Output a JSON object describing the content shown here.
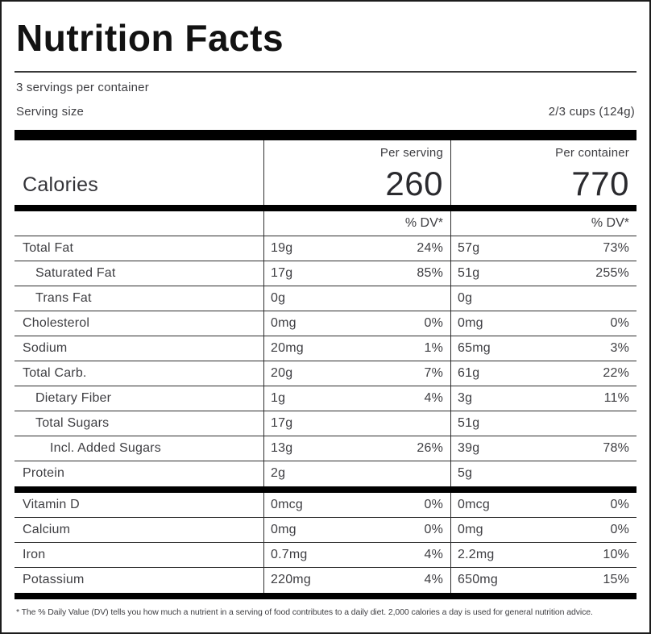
{
  "header": {
    "title": "Nutrition Facts",
    "servings_per_container": "3 servings per container",
    "serving_size_label": "Serving size",
    "serving_size_value": "2/3 cups (124g)"
  },
  "calories": {
    "label": "Calories",
    "per_serving_label": "Per serving",
    "per_serving_value": "260",
    "per_container_label": "Per container",
    "per_container_value": "770"
  },
  "dv_header": {
    "per_serving": "% DV*",
    "per_container": "% DV*"
  },
  "nutrients": [
    {
      "label": "Total Fat",
      "serving_amount": "19g",
      "serving_dv": "24%",
      "container_amount": "57g",
      "container_dv": "73%"
    },
    {
      "label": "Saturated Fat",
      "serving_amount": "17g",
      "serving_dv": "85%",
      "container_amount": "51g",
      "container_dv": "255%"
    },
    {
      "label": "Trans Fat",
      "serving_amount": "0g",
      "serving_dv": "",
      "container_amount": "0g",
      "container_dv": ""
    },
    {
      "label": "Cholesterol",
      "serving_amount": "0mg",
      "serving_dv": "0%",
      "container_amount": "0mg",
      "container_dv": "0%"
    },
    {
      "label": "Sodium",
      "serving_amount": "20mg",
      "serving_dv": "1%",
      "container_amount": "65mg",
      "container_dv": "3%"
    },
    {
      "label": "Total Carb.",
      "serving_amount": "20g",
      "serving_dv": "7%",
      "container_amount": "61g",
      "container_dv": "22%"
    },
    {
      "label": "Dietary Fiber",
      "serving_amount": "1g",
      "serving_dv": "4%",
      "container_amount": "3g",
      "container_dv": "11%"
    },
    {
      "label": "Total Sugars",
      "serving_amount": "17g",
      "serving_dv": "",
      "container_amount": "51g",
      "container_dv": ""
    },
    {
      "label": "Incl. Added Sugars",
      "serving_amount": "13g",
      "serving_dv": "26%",
      "container_amount": "39g",
      "container_dv": "78%"
    },
    {
      "label": "Protein",
      "serving_amount": "2g",
      "serving_dv": "",
      "container_amount": "5g",
      "container_dv": ""
    }
  ],
  "vitamins": [
    {
      "label": "Vitamin D",
      "serving_amount": "0mcg",
      "serving_dv": "0%",
      "container_amount": "0mcg",
      "container_dv": "0%"
    },
    {
      "label": "Calcium",
      "serving_amount": "0mg",
      "serving_dv": "0%",
      "container_amount": "0mg",
      "container_dv": "0%"
    },
    {
      "label": "Iron",
      "serving_amount": "0.7mg",
      "serving_dv": "4%",
      "container_amount": "2.2mg",
      "container_dv": "10%"
    },
    {
      "label": "Potassium",
      "serving_amount": "220mg",
      "serving_dv": "4%",
      "container_amount": "650mg",
      "container_dv": "15%"
    }
  ],
  "footnote": "* The % Daily Value (DV) tells you how much a nutrient in a serving of food contributes to a daily diet. 2,000 calories a day is used for general nutrition advice.",
  "colors": {
    "bar": "#000000",
    "text": "#3e3e42",
    "title": "#121212"
  }
}
